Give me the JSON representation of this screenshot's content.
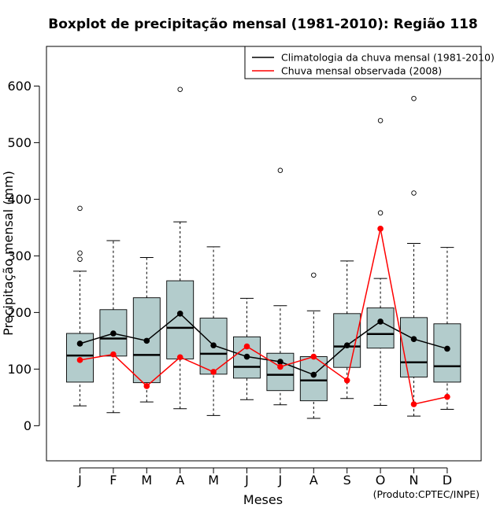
{
  "chart_data": {
    "type": "boxplot",
    "title": "Boxplot de precipitação mensal (1981-2010): Região 118",
    "xlabel": "Meses",
    "ylabel": "Precipitação mensal (mm)",
    "ylim": [
      -62,
      670
    ],
    "yticks": [
      0,
      100,
      200,
      300,
      400,
      500,
      600
    ],
    "categories": [
      "J",
      "F",
      "M",
      "A",
      "M",
      "J",
      "J",
      "A",
      "S",
      "O",
      "N",
      "D"
    ],
    "boxes": [
      {
        "month": "J",
        "whisker_low": 35,
        "q1": 77,
        "median": 124,
        "q3": 163,
        "whisker_high": 273,
        "outliers": [
          294,
          305,
          384
        ]
      },
      {
        "month": "F",
        "whisker_low": 23,
        "q1": 123,
        "median": 154,
        "q3": 205,
        "whisker_high": 327,
        "outliers": []
      },
      {
        "month": "M",
        "whisker_low": 42,
        "q1": 76,
        "median": 125,
        "q3": 226,
        "whisker_high": 297,
        "outliers": []
      },
      {
        "month": "A",
        "whisker_low": 30,
        "q1": 118,
        "median": 173,
        "q3": 256,
        "whisker_high": 360,
        "outliers": [
          594
        ]
      },
      {
        "month": "M",
        "whisker_low": 18,
        "q1": 91,
        "median": 127,
        "q3": 190,
        "whisker_high": 316,
        "outliers": []
      },
      {
        "month": "J",
        "whisker_low": 46,
        "q1": 84,
        "median": 104,
        "q3": 157,
        "whisker_high": 225,
        "outliers": []
      },
      {
        "month": "J",
        "whisker_low": 37,
        "q1": 62,
        "median": 90,
        "q3": 128,
        "whisker_high": 212,
        "outliers": [
          451
        ]
      },
      {
        "month": "A",
        "whisker_low": 13,
        "q1": 44,
        "median": 80,
        "q3": 122,
        "whisker_high": 203,
        "outliers": [
          266
        ]
      },
      {
        "month": "S",
        "whisker_low": 48,
        "q1": 103,
        "median": 140,
        "q3": 198,
        "whisker_high": 291,
        "outliers": []
      },
      {
        "month": "O",
        "whisker_low": 36,
        "q1": 137,
        "median": 162,
        "q3": 208,
        "whisker_high": 260,
        "outliers": [
          376,
          539
        ]
      },
      {
        "month": "N",
        "whisker_low": 17,
        "q1": 86,
        "median": 112,
        "q3": 191,
        "whisker_high": 322,
        "outliers": [
          411,
          578
        ]
      },
      {
        "month": "D",
        "whisker_low": 29,
        "q1": 77,
        "median": 105,
        "q3": 180,
        "whisker_high": 315,
        "outliers": []
      }
    ],
    "series": [
      {
        "name": "Climatologia da chuva mensal (1981-2010)",
        "color": "#000000",
        "values": [
          145,
          163,
          150,
          198,
          142,
          122,
          113,
          90,
          142,
          184,
          153,
          136
        ]
      },
      {
        "name": "Chuva mensal observada (2008)",
        "color": "#ff0000",
        "values": [
          116,
          126,
          70,
          121,
          95,
          140,
          104,
          122,
          80,
          348,
          38,
          51
        ]
      }
    ],
    "box_fill": "#b3cccc",
    "legend_position": "top-right",
    "credit": "(Produto:CPTEC/INPE)"
  }
}
